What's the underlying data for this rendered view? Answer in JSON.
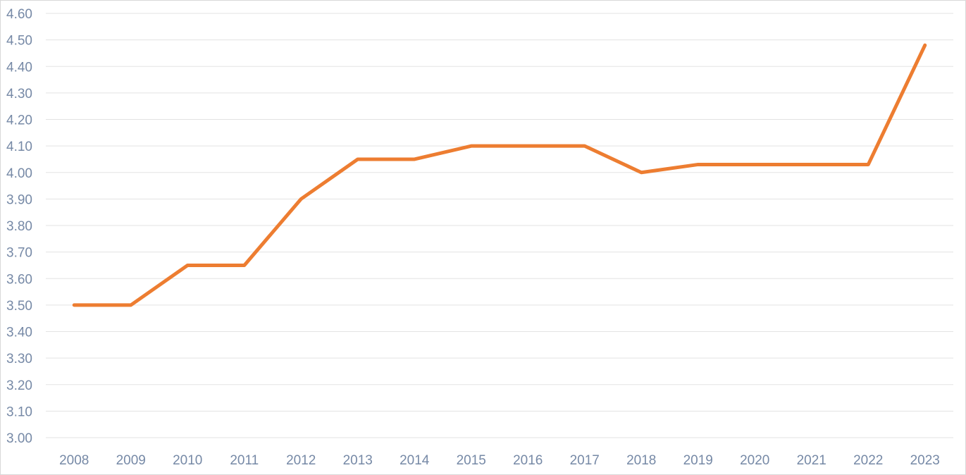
{
  "chart_data": {
    "type": "line",
    "title": "",
    "xlabel": "",
    "ylabel": "",
    "x": [
      "2008",
      "2009",
      "2010",
      "2011",
      "2012",
      "2013",
      "2014",
      "2015",
      "2016",
      "2017",
      "2018",
      "2019",
      "2020",
      "2021",
      "2022",
      "2023"
    ],
    "series": [
      {
        "color": "#ed7d31",
        "values": [
          3.5,
          3.5,
          3.65,
          3.65,
          3.9,
          4.05,
          4.05,
          4.1,
          4.1,
          4.1,
          4.0,
          4.03,
          4.03,
          4.03,
          4.03,
          4.48
        ]
      }
    ],
    "ylim": [
      3.0,
      4.6
    ],
    "yticks": [
      "3.00",
      "3.10",
      "3.20",
      "3.30",
      "3.40",
      "3.50",
      "3.60",
      "3.70",
      "3.80",
      "3.90",
      "4.00",
      "4.10",
      "4.20",
      "4.30",
      "4.40",
      "4.50",
      "4.60"
    ],
    "grid": true,
    "legend": "none"
  }
}
